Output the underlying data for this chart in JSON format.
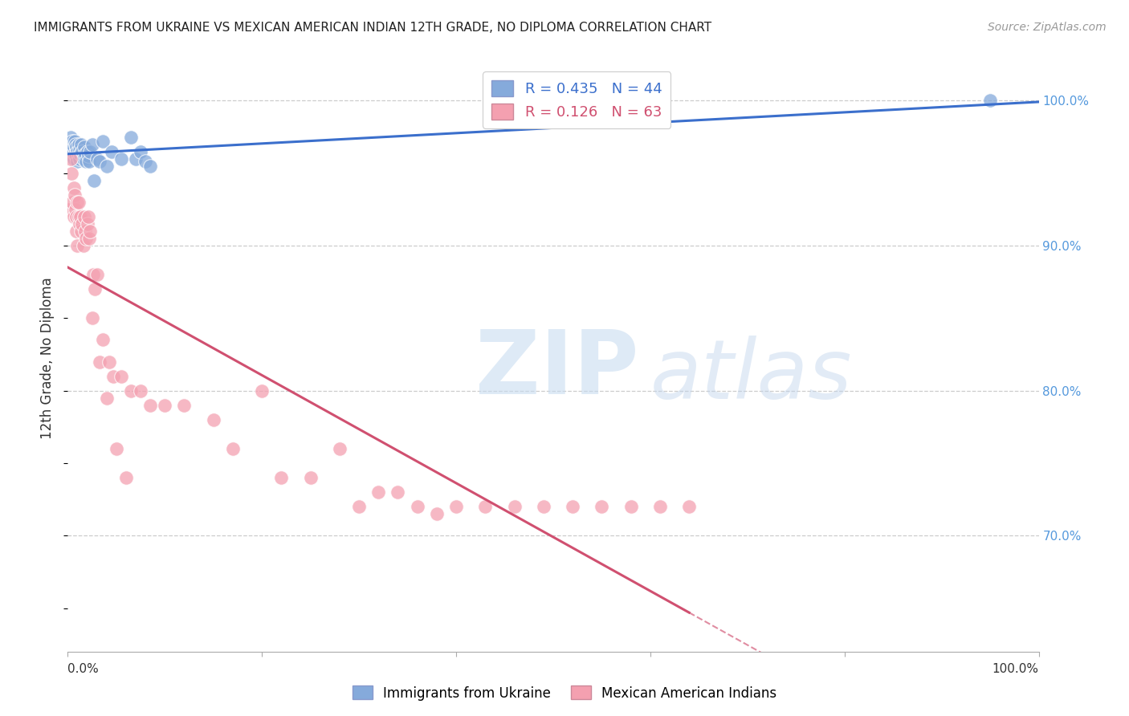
{
  "title": "IMMIGRANTS FROM UKRAINE VS MEXICAN AMERICAN INDIAN 12TH GRADE, NO DIPLOMA CORRELATION CHART",
  "source": "Source: ZipAtlas.com",
  "ylabel": "12th Grade, No Diploma",
  "legend_blue_r": "R = 0.435",
  "legend_blue_n": "N = 44",
  "legend_pink_r": "R = 0.126",
  "legend_pink_n": "N = 63",
  "legend_label_blue": "Immigrants from Ukraine",
  "legend_label_pink": "Mexican American Indians",
  "blue_color": "#85AADB",
  "pink_color": "#F4A0B0",
  "blue_line_color": "#3B6FCC",
  "pink_line_color": "#D05070",
  "background_color": "#FFFFFF",
  "grid_color": "#CCCCCC",
  "title_color": "#222222",
  "right_axis_color": "#5599DD",
  "blue_points_x": [
    0.002,
    0.003,
    0.004,
    0.005,
    0.005,
    0.006,
    0.006,
    0.007,
    0.007,
    0.008,
    0.008,
    0.009,
    0.009,
    0.01,
    0.01,
    0.011,
    0.011,
    0.012,
    0.012,
    0.013,
    0.014,
    0.015,
    0.016,
    0.017,
    0.018,
    0.019,
    0.02,
    0.021,
    0.022,
    0.023,
    0.025,
    0.027,
    0.03,
    0.033,
    0.036,
    0.04,
    0.045,
    0.055,
    0.065,
    0.07,
    0.075,
    0.08,
    0.085,
    0.95
  ],
  "blue_points_y": [
    0.97,
    0.975,
    0.968,
    0.965,
    0.972,
    0.96,
    0.968,
    0.963,
    0.972,
    0.965,
    0.97,
    0.962,
    0.968,
    0.958,
    0.965,
    0.962,
    0.97,
    0.96,
    0.966,
    0.963,
    0.97,
    0.965,
    0.96,
    0.968,
    0.963,
    0.958,
    0.965,
    0.962,
    0.958,
    0.965,
    0.97,
    0.945,
    0.96,
    0.958,
    0.972,
    0.955,
    0.965,
    0.96,
    0.975,
    0.96,
    0.965,
    0.958,
    0.955,
    1.0
  ],
  "pink_points_x": [
    0.001,
    0.003,
    0.004,
    0.005,
    0.006,
    0.006,
    0.007,
    0.008,
    0.009,
    0.009,
    0.01,
    0.01,
    0.011,
    0.011,
    0.012,
    0.013,
    0.014,
    0.015,
    0.016,
    0.017,
    0.018,
    0.019,
    0.02,
    0.021,
    0.022,
    0.023,
    0.025,
    0.026,
    0.028,
    0.03,
    0.033,
    0.036,
    0.04,
    0.043,
    0.047,
    0.05,
    0.055,
    0.06,
    0.065,
    0.075,
    0.085,
    0.1,
    0.12,
    0.15,
    0.17,
    0.2,
    0.22,
    0.25,
    0.28,
    0.3,
    0.32,
    0.34,
    0.36,
    0.38,
    0.4,
    0.43,
    0.46,
    0.49,
    0.52,
    0.55,
    0.58,
    0.61,
    0.64
  ],
  "pink_points_y": [
    0.925,
    0.96,
    0.95,
    0.93,
    0.94,
    0.92,
    0.935,
    0.925,
    0.91,
    0.92,
    0.93,
    0.9,
    0.92,
    0.93,
    0.915,
    0.92,
    0.91,
    0.915,
    0.9,
    0.92,
    0.91,
    0.905,
    0.915,
    0.92,
    0.905,
    0.91,
    0.85,
    0.88,
    0.87,
    0.88,
    0.82,
    0.835,
    0.795,
    0.82,
    0.81,
    0.76,
    0.81,
    0.74,
    0.8,
    0.8,
    0.79,
    0.79,
    0.79,
    0.78,
    0.76,
    0.8,
    0.74,
    0.74,
    0.76,
    0.72,
    0.73,
    0.73,
    0.72,
    0.715,
    0.72,
    0.72,
    0.72,
    0.72,
    0.72,
    0.72,
    0.72,
    0.72,
    0.72
  ],
  "xlim": [
    0.0,
    1.0
  ],
  "ylim": [
    0.62,
    1.025
  ],
  "yticks": [
    0.7,
    0.8,
    0.9,
    1.0
  ],
  "ytick_labels": [
    "70.0%",
    "80.0%",
    "90.0%",
    "100.0%"
  ],
  "xticks": [
    0.0,
    0.2,
    0.4,
    0.6,
    0.8,
    1.0
  ]
}
